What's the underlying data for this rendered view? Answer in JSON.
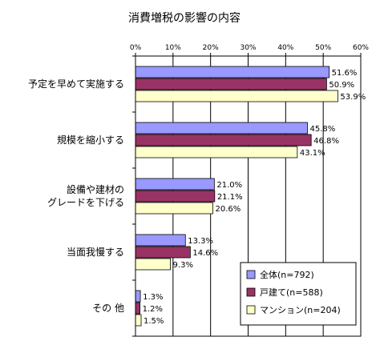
{
  "chart_data": {
    "type": "bar",
    "orientation": "horizontal",
    "title": "消費増税の影響の内容",
    "categories": [
      [
        "予定を早めて実施する"
      ],
      [
        "規模を縮小する"
      ],
      [
        "設備や建材の",
        "グレードを下げる"
      ],
      [
        "当面我慢する"
      ],
      [
        "その 他"
      ]
    ],
    "series": [
      {
        "name": "全体(n=792)",
        "values": [
          51.6,
          45.8,
          21.0,
          13.3,
          1.3
        ],
        "labels": [
          "51.6%",
          "45.8%",
          "21.0%",
          "13.3%",
          "1.3%"
        ]
      },
      {
        "name": "戸建て(n=588)",
        "values": [
          50.9,
          46.8,
          21.1,
          14.6,
          1.2
        ],
        "labels": [
          "50.9%",
          "46.8%",
          "21.1%",
          "14.6%",
          "1.2%"
        ]
      },
      {
        "name": "マンション(n=204)",
        "values": [
          53.9,
          43.1,
          20.6,
          9.3,
          1.5
        ],
        "labels": [
          "53.9%",
          "43.1%",
          "20.6%",
          "9.3%",
          "1.5%"
        ]
      }
    ],
    "xlim": [
      0,
      60
    ],
    "xticks": [
      "0%",
      "10%",
      "20%",
      "30%",
      "40%",
      "50%",
      "60%"
    ],
    "grid": true,
    "legend": "bottom-right"
  },
  "colors": {
    "series": [
      "#9999FF",
      "#993366",
      "#FFFFCC"
    ],
    "grid": "#000000",
    "border": "#000000"
  }
}
